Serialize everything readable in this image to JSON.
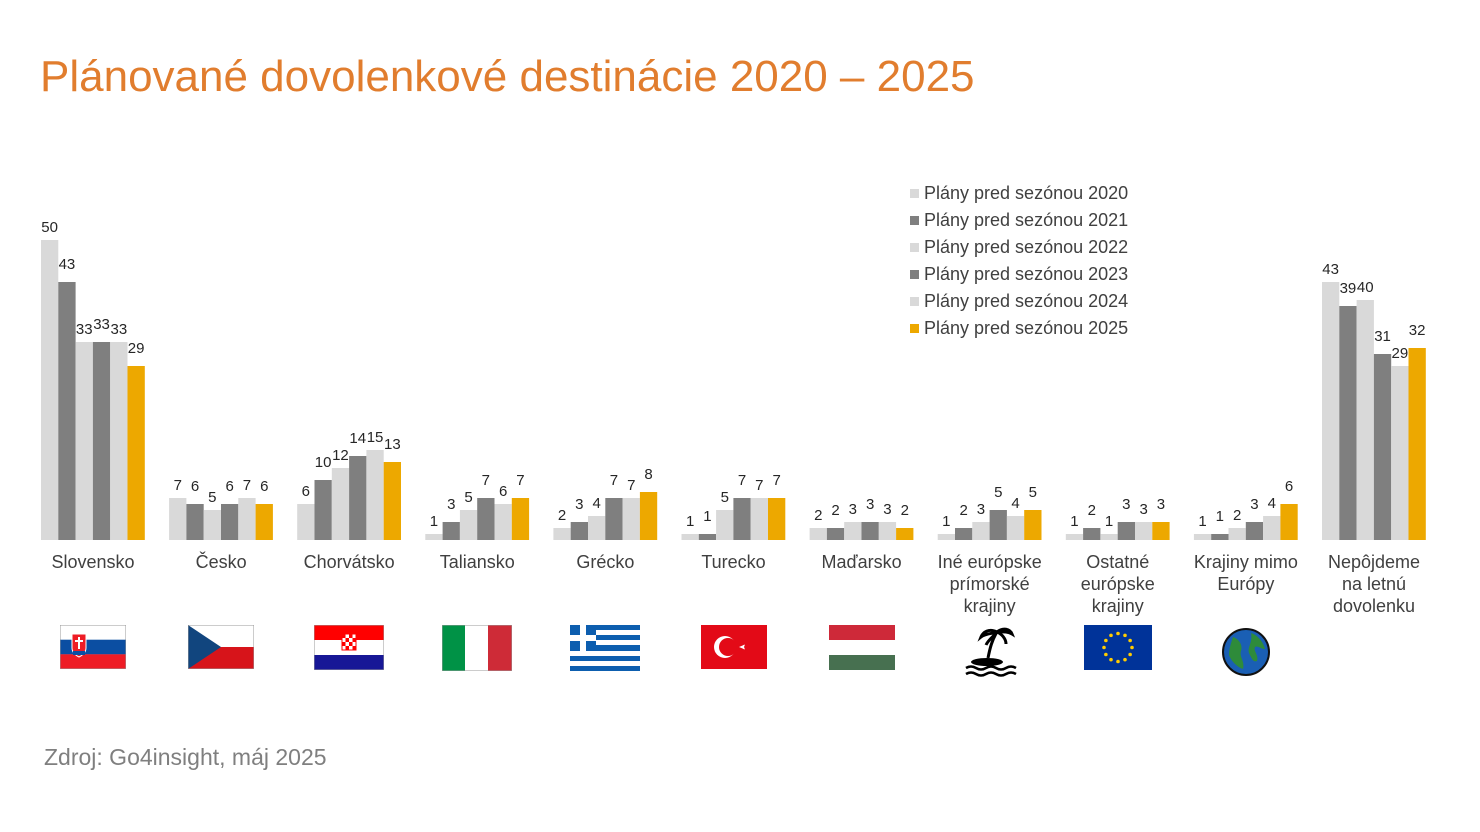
{
  "title": "Plánované dovolenkové destinácie 2020 – 2025",
  "source": "Zdroj: Go4insight, máj 2025",
  "chart_data": {
    "type": "bar",
    "categories": [
      "Slovensko",
      "Česko",
      "Chorvátsko",
      "Taliansko",
      "Grécko",
      "Turecko",
      "Maďarsko",
      "Iné európske prímorské krajiny",
      "Ostatné európske krajiny",
      "Krajiny mimo Európy",
      "Nepôjdeme na letnú dovolenku"
    ],
    "series": [
      {
        "name": "Plány pred sezónou 2020",
        "color": "#D9D9D9",
        "values": [
          50,
          7,
          6,
          1,
          2,
          1,
          2,
          1,
          1,
          1,
          43
        ]
      },
      {
        "name": "Plány pred sezónou 2021",
        "color": "#7F7F7F",
        "values": [
          43,
          6,
          10,
          3,
          3,
          1,
          2,
          2,
          2,
          1,
          39
        ]
      },
      {
        "name": "Plány pred sezónou 2022",
        "color": "#D9D9D9",
        "values": [
          33,
          5,
          12,
          5,
          4,
          5,
          3,
          3,
          1,
          2,
          40
        ]
      },
      {
        "name": "Plány pred sezónou 2023",
        "color": "#7F7F7F",
        "values": [
          33,
          6,
          14,
          7,
          7,
          7,
          3,
          5,
          3,
          3,
          31
        ]
      },
      {
        "name": "Plány pred sezónou 2024",
        "color": "#D9D9D9",
        "values": [
          33,
          7,
          15,
          6,
          7,
          7,
          3,
          4,
          3,
          4,
          29
        ]
      },
      {
        "name": "Plány pred sezónou 2025",
        "color": "#EDA800",
        "values": [
          29,
          6,
          13,
          7,
          8,
          7,
          2,
          5,
          3,
          6,
          32
        ]
      }
    ],
    "ylim": [
      0,
      50
    ],
    "grid": false,
    "legend": "top-right",
    "icons": [
      "flag-slovakia",
      "flag-czechia",
      "flag-croatia",
      "flag-italy",
      "flag-greece",
      "flag-turkey",
      "flag-hungary",
      "palm-island-icon",
      "flag-eu",
      "globe-icon",
      ""
    ]
  }
}
